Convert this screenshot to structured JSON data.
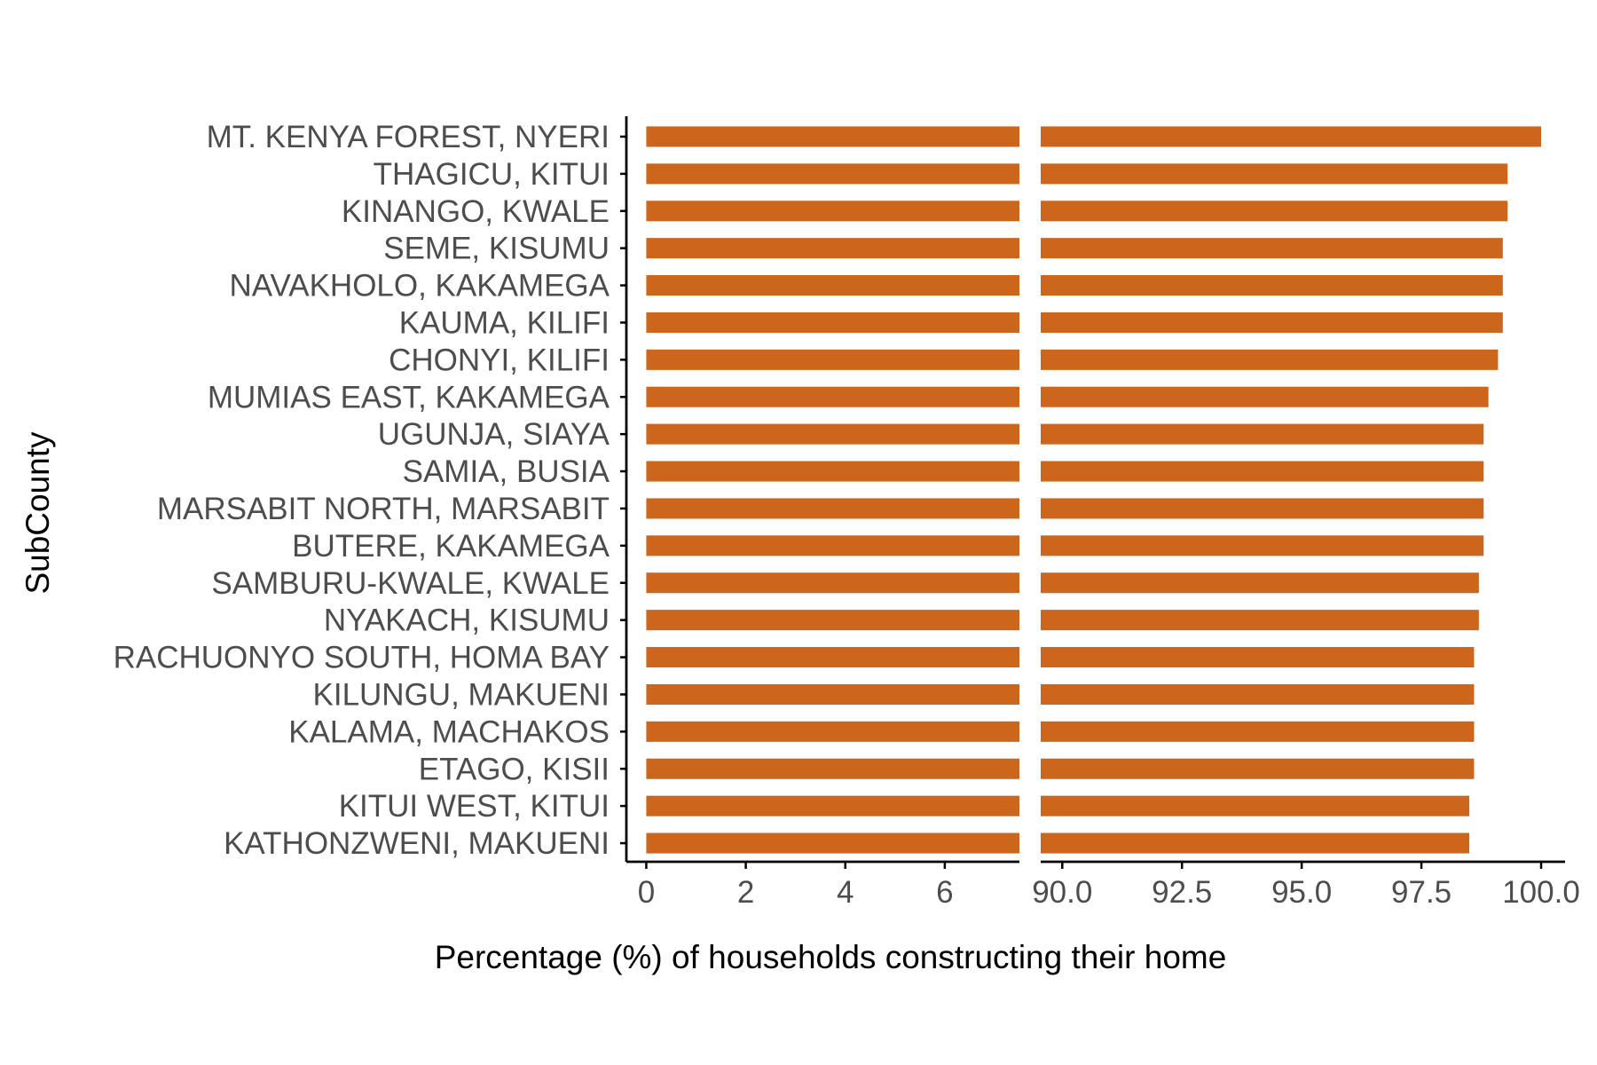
{
  "chart_data": {
    "type": "bar",
    "orientation": "horizontal",
    "axis_break": true,
    "xlabel": "Percentage (%) of households constructing their home",
    "ylabel": "SubCounty",
    "categories": [
      "MT. KENYA FOREST, NYERI",
      "THAGICU, KITUI",
      "KINANGO, KWALE",
      "SEME, KISUMU",
      "NAVAKHOLO, KAKAMEGA",
      "KAUMA, KILIFI",
      "CHONYI, KILIFI",
      "MUMIAS EAST, KAKAMEGA",
      "UGUNJA, SIAYA",
      "SAMIA, BUSIA",
      "MARSABIT NORTH, MARSABIT",
      "BUTERE, KAKAMEGA",
      "SAMBURU-KWALE, KWALE",
      "NYAKACH, KISUMU",
      "RACHUONYO SOUTH, HOMA BAY",
      "KILUNGU, MAKUENI",
      "KALAMA, MACHAKOS",
      "ETAGO, KISII",
      "KITUI WEST, KITUI",
      "KATHONZWENI, MAKUENI"
    ],
    "values": [
      100.0,
      99.3,
      99.3,
      99.2,
      99.2,
      99.2,
      99.1,
      98.9,
      98.8,
      98.8,
      98.8,
      98.8,
      98.7,
      98.7,
      98.6,
      98.6,
      98.6,
      98.6,
      98.5,
      98.5
    ],
    "x_segments": [
      {
        "range": [
          -0.4,
          7.5
        ],
        "ticks": [
          "0",
          "2",
          "4",
          "6"
        ]
      },
      {
        "range": [
          89.55,
          100.5
        ],
        "ticks": [
          "90.0",
          "92.5",
          "95.0",
          "97.5",
          "100.0"
        ]
      }
    ],
    "grid": false,
    "legend": "none",
    "bar_color": "#cd661d",
    "axis_color": "#000000",
    "tick_label_color": "#4d4d4d"
  }
}
